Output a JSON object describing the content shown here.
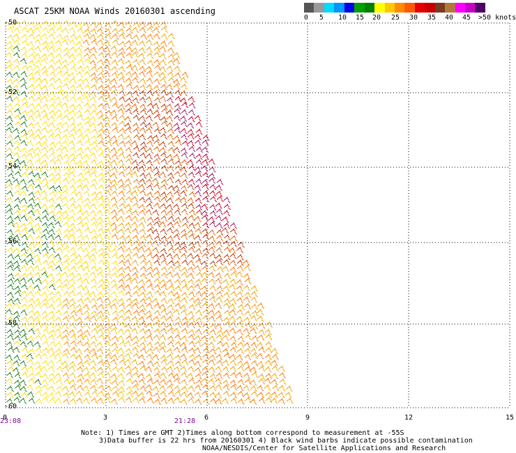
{
  "title": "ASCAT 25KM NOAA Winds 20160301 ascending",
  "legend": {
    "colors": [
      "#555555",
      "#9a9a9a",
      "#00dcff",
      "#0096ff",
      "#0000e6",
      "#00a000",
      "#008000",
      "#ffff00",
      "#ffc800",
      "#ff8c00",
      "#ff5a00",
      "#e60000",
      "#c80000",
      "#783c1e",
      "#b4783c",
      "#ff00ff",
      "#c800c8",
      "#500064"
    ],
    "labels": [
      "0",
      "5",
      "10",
      "15",
      "20",
      "25",
      "30",
      "35",
      "40",
      "45",
      ">50 knots"
    ]
  },
  "axes": {
    "x_ticks": [
      "0",
      "3",
      "6",
      "9",
      "12",
      "15"
    ],
    "y_ticks": [
      "-50",
      "-52",
      "-54",
      "-56",
      "-58",
      "-60"
    ]
  },
  "times": [
    "23:08",
    "21:28"
  ],
  "notes": {
    "line1": "Note: 1) Times are GMT 2)Times along bottom correspond to measurement at -55S",
    "line2": "3)Data buffer is 22 hrs from 20160301 4) Black wind barbs indicate possible contamination",
    "line3": "NOAA/NESDIS/Center for Satellite Applications and Research"
  },
  "map": {
    "swath_color_key": "yellow-orange-red barbs over ocean, green barbs on west edge",
    "grid": "dotted"
  }
}
